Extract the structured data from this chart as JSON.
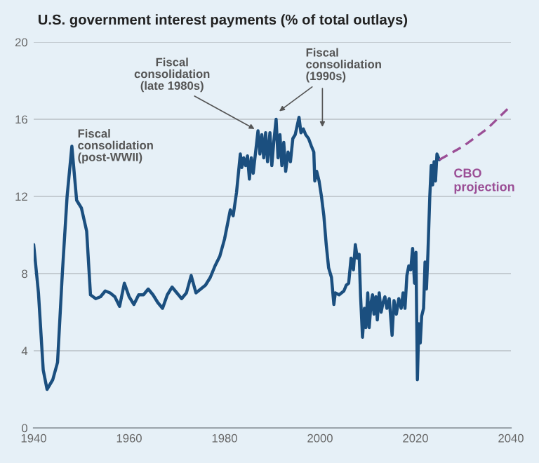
{
  "chart_data": {
    "type": "line",
    "title": "U.S. government interest payments (% of total outlays)",
    "xlim": [
      1940,
      2040
    ],
    "xticks": [
      1940,
      1960,
      1980,
      2000,
      2020,
      2040
    ],
    "ylim": [
      0,
      20
    ],
    "yticks": [
      0,
      4,
      8,
      12,
      16,
      20
    ],
    "grid": "y",
    "series": [
      {
        "color": "#1b4f7f",
        "line_style": "solid",
        "x": [
          1940,
          1941,
          1942,
          1942.8,
          1944,
          1945,
          1946,
          1947,
          1948,
          1949,
          1950,
          1951.1,
          1951.9,
          1953,
          1954,
          1955,
          1956,
          1957,
          1958,
          1959,
          1960,
          1961,
          1962,
          1963,
          1964,
          1965,
          1966,
          1967,
          1968,
          1969,
          1970,
          1971,
          1972,
          1973,
          1974,
          1975,
          1976,
          1977,
          1978,
          1979,
          1980,
          1981.2,
          1981.8,
          1982.5,
          1983.3,
          1983.6,
          1984.0,
          1984.4,
          1984.8,
          1985.2,
          1985.6,
          1986.0,
          1986.5,
          1987.0,
          1987.4,
          1987.8,
          1988.2,
          1988.6,
          1989.0,
          1989.5,
          1989.9,
          1990.3,
          1990.8,
          1991.2,
          1991.6,
          1992.0,
          1992.4,
          1992.8,
          1993.3,
          1993.8,
          1994.3,
          1994.8,
          1995.6,
          1996.0,
          1996.5,
          1997.0,
          1997.6,
          1998.2,
          1998.7,
          1998.9,
          1999.3,
          1999.8,
          2000.3,
          2000.8,
          2001.3,
          2001.8,
          2002.4,
          2002.9,
          2003.2,
          2004.0,
          2005.0,
          2005.5,
          2006.0,
          2006.5,
          2007.0,
          2007.4,
          2007.8,
          2008.2,
          2008.5,
          2008.9,
          2009.3,
          2009.6,
          2010.0,
          2010.3,
          2010.7,
          2011.0,
          2011.3,
          2011.7,
          2012.0,
          2012.4,
          2012.8,
          2013.2,
          2013.6,
          2014.0,
          2014.5,
          2015.1,
          2015.5,
          2016.0,
          2016.5,
          2017.0,
          2017.4,
          2017.8,
          2018.2,
          2018.6,
          2019.0,
          2019.4,
          2019.8,
          2020.1,
          2020.4,
          2020.7,
          2021.0,
          2021.3,
          2021.7,
          2022.0,
          2022.3,
          2022.6,
          2023.0,
          2023.3,
          2023.6,
          2023.9,
          2024.2,
          2024.5,
          2025.0
        ],
        "values": [
          9.5,
          7.0,
          3.0,
          2.0,
          2.5,
          3.4,
          8.0,
          12.0,
          14.6,
          11.8,
          11.4,
          10.2,
          6.9,
          6.7,
          6.8,
          7.1,
          7.0,
          6.8,
          6.3,
          7.5,
          6.8,
          6.4,
          6.9,
          6.9,
          7.2,
          6.9,
          6.5,
          6.2,
          6.9,
          7.3,
          7.0,
          6.7,
          7.0,
          7.9,
          7.0,
          7.2,
          7.4,
          7.8,
          8.4,
          8.9,
          9.8,
          11.3,
          11.0,
          12.2,
          14.2,
          13.5,
          14.0,
          13.6,
          14.1,
          12.9,
          14.0,
          13.2,
          14.3,
          15.4,
          14.2,
          15.2,
          14.0,
          15.3,
          13.8,
          15.3,
          13.6,
          14.8,
          16.0,
          14.0,
          15.2,
          13.6,
          14.8,
          13.3,
          14.3,
          13.8,
          15.0,
          15.2,
          16.1,
          15.3,
          15.5,
          15.2,
          15.0,
          14.6,
          14.3,
          12.8,
          13.3,
          12.8,
          12.0,
          11.0,
          9.5,
          8.3,
          7.8,
          6.4,
          7.0,
          6.9,
          7.1,
          7.4,
          7.5,
          8.8,
          8.2,
          9.5,
          8.8,
          9.0,
          6.8,
          4.7,
          6.2,
          5.2,
          7.0,
          5.2,
          6.5,
          6.9,
          5.9,
          6.8,
          5.6,
          7.0,
          6.0,
          6.5,
          6.8,
          6.2,
          6.7,
          4.8,
          6.6,
          5.9,
          6.7,
          6.2,
          7.0,
          6.2,
          7.9,
          8.4,
          8.2,
          9.3,
          7.5,
          9.1,
          2.5,
          5.4,
          4.4,
          5.8,
          6.2,
          8.6,
          7.2,
          9.0,
          12.0,
          13.6,
          12.6,
          13.8,
          12.8,
          14.2,
          13.9
        ]
      },
      {
        "name": "CBO\nprojection",
        "color": "#9b4f96",
        "line_style": "dashed",
        "x": [
          2025.0,
          2030,
          2035,
          2040
        ],
        "values": [
          13.9,
          14.6,
          15.5,
          16.7
        ]
      }
    ],
    "annotations": [
      {
        "text": "Fiscal\nconsolidation\n(post-WWII)"
      },
      {
        "text": "Fiscal\nconsolidation\n(late 1980s)",
        "x": 1987.0,
        "y": 15.4
      },
      {
        "text": "Fiscal\nconsolidation\n(1990s)",
        "x": 1990.8,
        "y": 16.3
      }
    ]
  }
}
